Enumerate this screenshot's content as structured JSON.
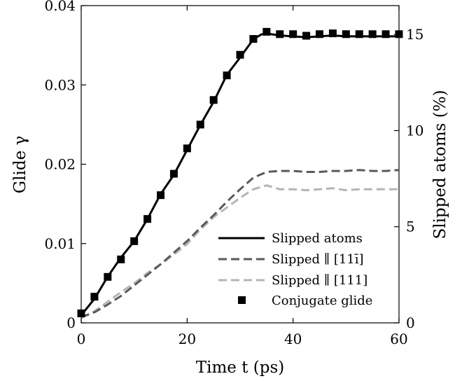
{
  "chart_data": {
    "type": "line",
    "xlabel": "Time t (ps)",
    "ylabel_left": "Glide γ",
    "ylabel_right": "Slipped atoms (%)",
    "xlim": [
      0,
      60
    ],
    "ylim_left": [
      0,
      0.04
    ],
    "ylim_right": [
      0,
      16.5
    ],
    "x_ticks": [
      "0",
      "20",
      "40",
      "60"
    ],
    "y_ticks_left": [
      "0",
      "0.01",
      "0.02",
      "0.03",
      "0.04"
    ],
    "y_ticks_right": [
      "0",
      "5",
      "10",
      "15"
    ],
    "grid": false,
    "legend_position": "bottom-right",
    "series": [
      {
        "name": "Slipped atoms",
        "axis": "right",
        "style": "solid",
        "color": "#000000",
        "x": [
          0,
          2.5,
          5,
          7.5,
          10,
          12.5,
          15,
          17.5,
          20,
          22.5,
          25,
          27.5,
          30,
          32.5,
          34,
          35,
          37.5,
          40,
          42.5,
          45,
          47.5,
          50,
          52.5,
          55,
          57.5,
          60
        ],
        "y": [
          0.4,
          1.25,
          2.4,
          3.4,
          4.25,
          5.4,
          6.7,
          7.7,
          9.0,
          10.3,
          11.5,
          12.9,
          13.8,
          14.75,
          15.0,
          15.05,
          14.95,
          14.9,
          14.85,
          14.9,
          14.95,
          14.9,
          14.9,
          14.9,
          14.9,
          14.9
        ]
      },
      {
        "name": "Slipped ∥ [11ī]",
        "axis": "right",
        "style": "dashed",
        "color": "#5a5a5a",
        "x": [
          0,
          2.5,
          5,
          7.5,
          10,
          12.5,
          15,
          17.5,
          20,
          22.5,
          25,
          27.5,
          30,
          32.5,
          35,
          37.5,
          40,
          42.5,
          45,
          47.5,
          50,
          52.5,
          55,
          57.5,
          60
        ],
        "y": [
          0.3,
          0.55,
          0.95,
          1.4,
          1.95,
          2.5,
          3.05,
          3.65,
          4.25,
          4.95,
          5.6,
          6.3,
          6.95,
          7.55,
          7.85,
          7.9,
          7.9,
          7.85,
          7.85,
          7.9,
          7.9,
          7.95,
          7.9,
          7.9,
          7.95
        ]
      },
      {
        "name": "Slipped ∥ [111]",
        "axis": "right",
        "style": "dashed",
        "color": "#b5b5b5",
        "x": [
          0,
          2.5,
          5,
          7.5,
          10,
          12.5,
          15,
          17.5,
          20,
          22.5,
          25,
          27.5,
          30,
          32.5,
          35,
          37.5,
          40,
          42.5,
          45,
          47.5,
          50,
          52.5,
          55,
          57.5,
          60
        ],
        "y": [
          0.25,
          0.6,
          1.1,
          1.6,
          2.05,
          2.6,
          3.05,
          3.55,
          4.1,
          4.85,
          5.5,
          6.0,
          6.5,
          6.95,
          7.15,
          6.95,
          6.95,
          6.9,
          6.95,
          7.0,
          6.9,
          6.95,
          6.95,
          6.95,
          6.95
        ]
      },
      {
        "name": "Conjugate glide",
        "axis": "left",
        "style": "marker-square",
        "color": "#000000",
        "x": [
          0,
          2.5,
          5,
          7.5,
          10,
          12.5,
          15,
          17.5,
          20,
          22.5,
          25,
          27.5,
          30,
          32.5,
          35,
          37.5,
          40,
          42.5,
          45,
          47.5,
          50,
          52.5,
          55,
          57.5,
          60
        ],
        "y": [
          0.0012,
          0.0033,
          0.0058,
          0.008,
          0.0103,
          0.0131,
          0.0161,
          0.0188,
          0.022,
          0.025,
          0.0281,
          0.0312,
          0.0338,
          0.0358,
          0.0367,
          0.0364,
          0.0364,
          0.0362,
          0.0364,
          0.0365,
          0.0364,
          0.0364,
          0.0364,
          0.0364,
          0.0364
        ]
      }
    ]
  }
}
